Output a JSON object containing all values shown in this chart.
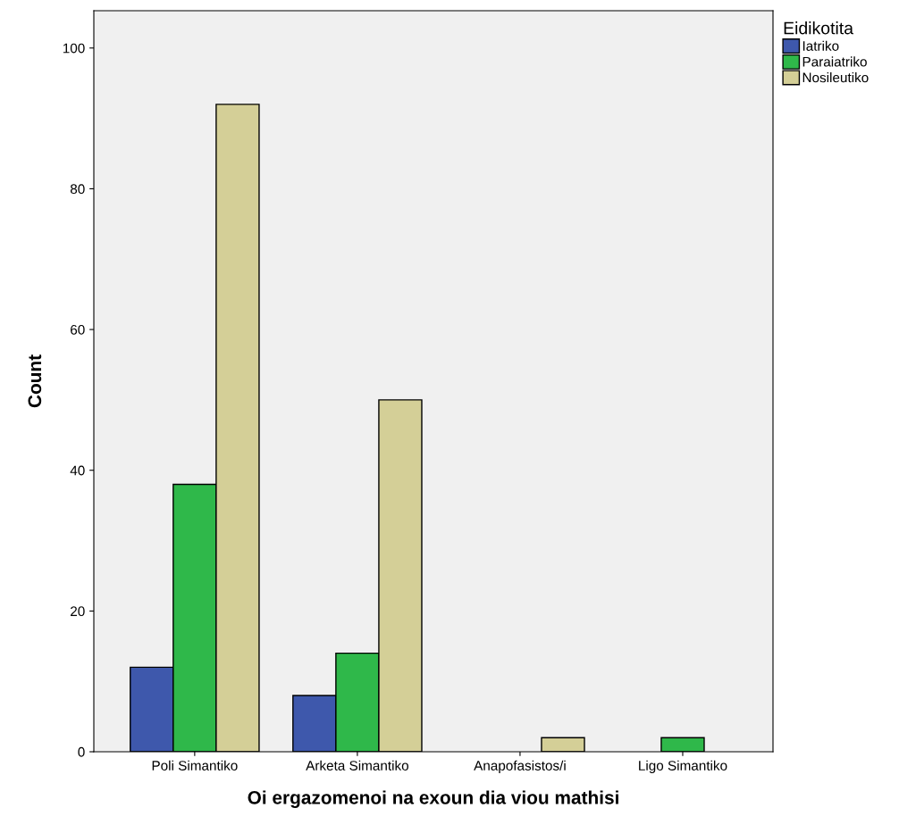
{
  "chart_data": {
    "type": "bar",
    "xlabel": "Oi ergazomenoi na exoun dia viou mathisi",
    "ylabel": "Count",
    "legend_title": "Eidikotita",
    "categories": [
      "Poli Simantiko",
      "Arketa Simantiko",
      "Anapofasistos/i",
      "Ligo Simantiko"
    ],
    "series": [
      {
        "name": "Iatriko",
        "color": "#3e58ac",
        "values": [
          12,
          8,
          null,
          null
        ]
      },
      {
        "name": "Paraiatriko",
        "color": "#2fb84a",
        "values": [
          38,
          14,
          null,
          2
        ]
      },
      {
        "name": "Nosileutiko",
        "color": "#d4cf97",
        "values": [
          92,
          50,
          2,
          null
        ]
      }
    ],
    "ylim": [
      0,
      105.3
    ],
    "yticks": [
      0,
      20,
      40,
      60,
      80,
      100
    ],
    "grid": false,
    "legend": "top right"
  }
}
